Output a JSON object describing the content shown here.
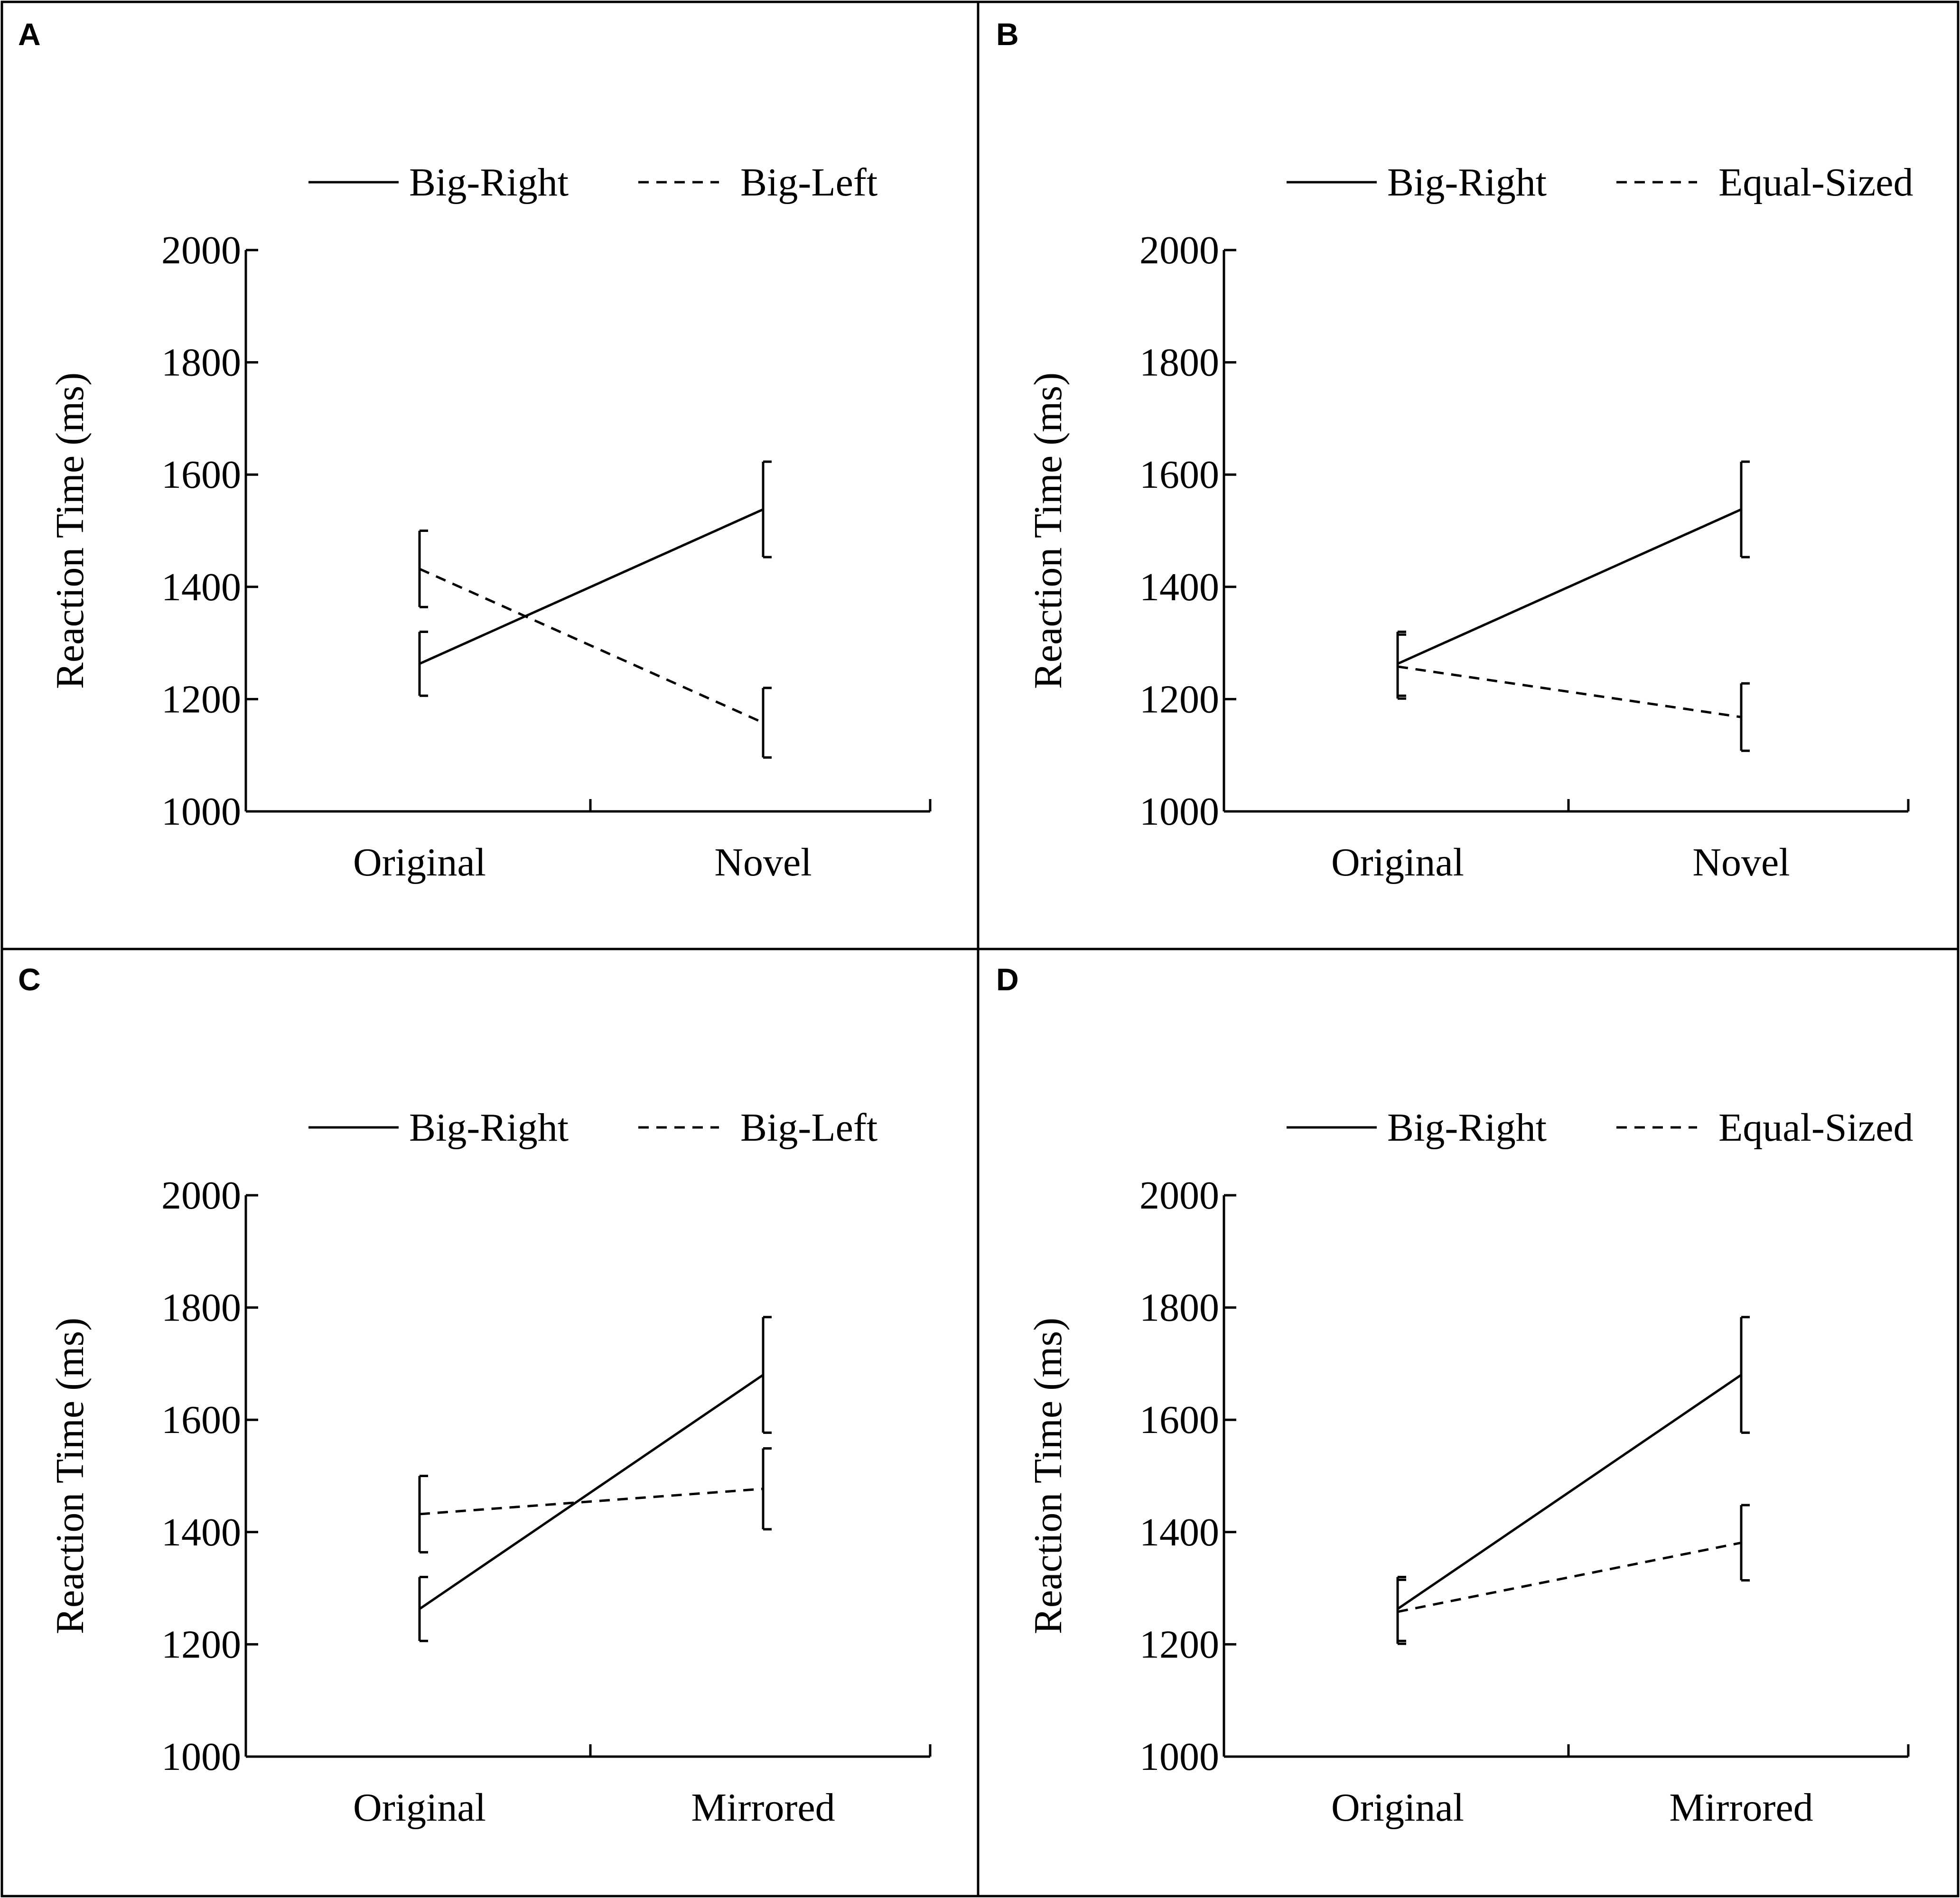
{
  "chart_data": [
    {
      "panel": "A",
      "type": "line",
      "categories": [
        "Original",
        "Novel"
      ],
      "ylabel": "Reaction  Time  (ms)",
      "yticks": [
        "1000",
        "1200",
        "1400",
        "1600",
        "1800",
        "2000"
      ],
      "ylim": [
        1000,
        2000
      ],
      "series": [
        {
          "name": "Big-Right",
          "style": "solid",
          "values": [
            1263,
            1538
          ],
          "error": [
            57,
            85
          ]
        },
        {
          "name": "Big-Left",
          "style": "dashed",
          "values": [
            1432,
            1158
          ],
          "error": [
            68,
            62
          ]
        }
      ]
    },
    {
      "panel": "B",
      "type": "line",
      "categories": [
        "Original",
        "Novel"
      ],
      "ylabel": "Reaction  Time  (ms)",
      "yticks": [
        "1000",
        "1200",
        "1400",
        "1600",
        "1800",
        "2000"
      ],
      "ylim": [
        1000,
        2000
      ],
      "series": [
        {
          "name": "Big-Right",
          "style": "solid",
          "values": [
            1263,
            1538
          ],
          "error": [
            57,
            85
          ]
        },
        {
          "name": "Equal-Sized",
          "style": "dashed",
          "values": [
            1258,
            1168
          ],
          "error": [
            57,
            60
          ]
        }
      ]
    },
    {
      "panel": "C",
      "type": "line",
      "categories": [
        "Original",
        "Mirrored"
      ],
      "ylabel": "Reaction  Time  (ms)",
      "yticks": [
        "1000",
        "1200",
        "1400",
        "1600",
        "1800",
        "2000"
      ],
      "ylim": [
        1000,
        2000
      ],
      "series": [
        {
          "name": "Big-Right",
          "style": "solid",
          "values": [
            1263,
            1680
          ],
          "error": [
            57,
            103
          ]
        },
        {
          "name": "Big-Left",
          "style": "dashed",
          "values": [
            1432,
            1477
          ],
          "error": [
            68,
            72
          ]
        }
      ]
    },
    {
      "panel": "D",
      "type": "line",
      "categories": [
        "Original",
        "Mirrored"
      ],
      "ylabel": "Reaction  Time  (ms)",
      "yticks": [
        "1000",
        "1200",
        "1400",
        "1600",
        "1800",
        "2000"
      ],
      "ylim": [
        1000,
        2000
      ],
      "series": [
        {
          "name": "Big-Right",
          "style": "solid",
          "values": [
            1263,
            1680
          ],
          "error": [
            57,
            103
          ]
        },
        {
          "name": "Equal-Sized",
          "style": "dashed",
          "values": [
            1258,
            1381
          ],
          "error": [
            57,
            67
          ]
        }
      ]
    }
  ]
}
